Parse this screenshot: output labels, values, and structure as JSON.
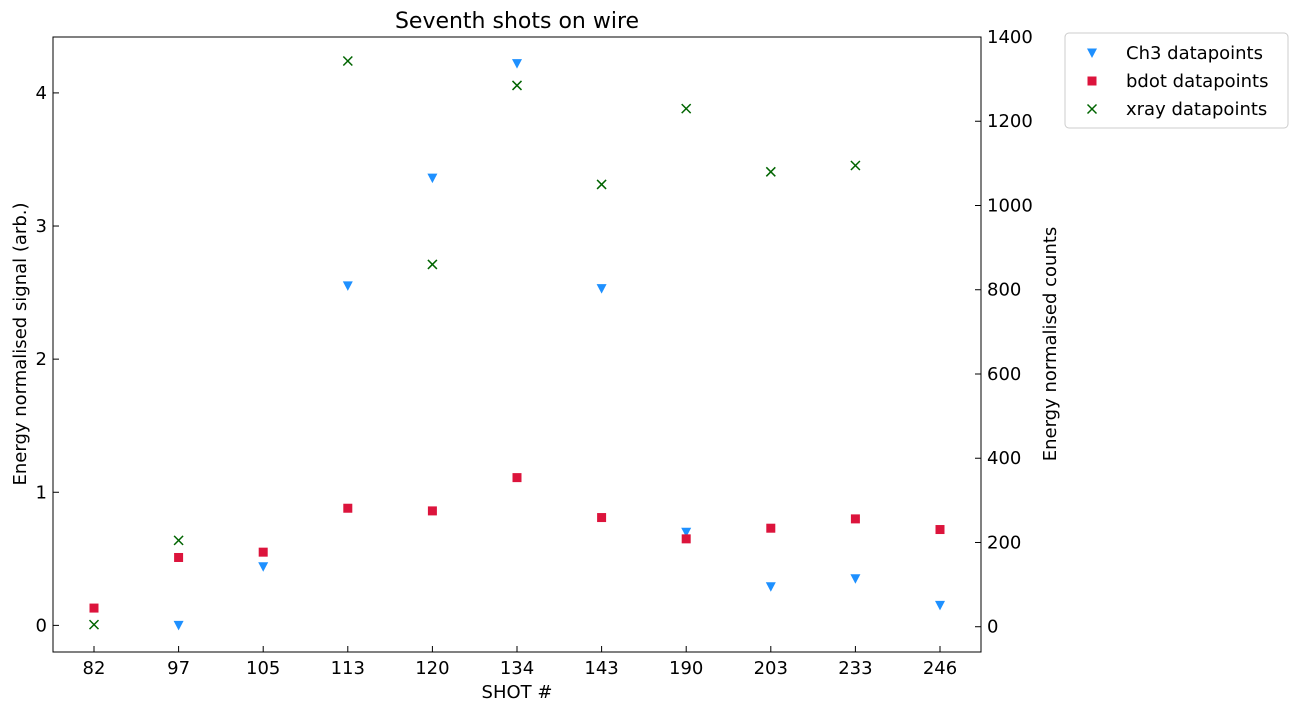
{
  "chart_data": {
    "type": "scatter",
    "title": "Seventh shots on wire",
    "xlabel": "SHOT #",
    "ylabel_left": "Energy normalised signal (arb.)",
    "ylabel_right": "Energy normalised counts",
    "categories": [
      "82",
      "97",
      "105",
      "113",
      "120",
      "134",
      "143",
      "190",
      "203",
      "233",
      "246"
    ],
    "ylim_left": [
      -0.2,
      4.42
    ],
    "yticks_left": [
      0,
      1,
      2,
      3,
      4
    ],
    "ylim_right": [
      -60,
      1400
    ],
    "yticks_right": [
      0,
      200,
      400,
      600,
      800,
      1000,
      1200,
      1400
    ],
    "legend_position": "outside-top-right",
    "series": [
      {
        "name": "Ch3 datapoints",
        "axis": "left",
        "marker": "triangle-down",
        "color": "#1e90ff",
        "values": [
          null,
          0.0,
          0.44,
          2.55,
          3.36,
          4.22,
          2.53,
          0.7,
          0.29,
          0.35,
          0.15
        ]
      },
      {
        "name": "bdot datapoints",
        "axis": "left",
        "marker": "square",
        "color": "#dc143c",
        "values": [
          0.13,
          0.51,
          0.55,
          0.88,
          0.86,
          1.11,
          0.81,
          0.65,
          0.73,
          0.8,
          0.72
        ]
      },
      {
        "name": "xray datapoints",
        "axis": "right",
        "marker": "x",
        "color": "#006400",
        "values": [
          5,
          205,
          null,
          1343,
          860,
          1285,
          1050,
          1230,
          1080,
          1095,
          null
        ]
      }
    ]
  }
}
